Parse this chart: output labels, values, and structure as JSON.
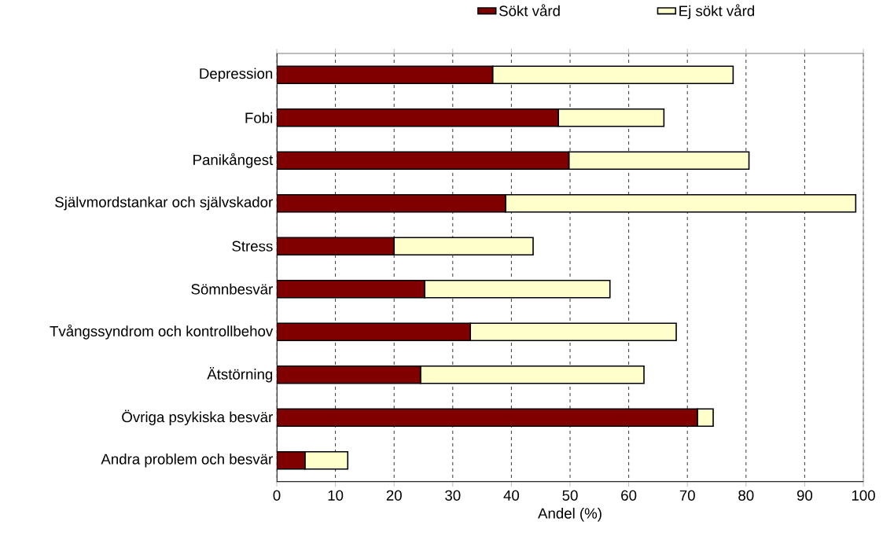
{
  "chart_data": {
    "type": "bar",
    "orientation": "horizontal",
    "stacked": true,
    "xlabel": "Andel (%)",
    "categories": [
      "Depression",
      "Fobi",
      "Panikångest",
      "Självmordstankar och självskador",
      "Stress",
      "Sömnbesvär",
      "Tvångssyndrom och kontrollbehov",
      "Ätstörning",
      "Övriga psykiska besvär",
      "Andra problem och besvär"
    ],
    "series": [
      {
        "name": "Sökt vård",
        "color": "#800000",
        "values": [
          36.8,
          48.0,
          49.8,
          39.0,
          20.0,
          25.2,
          33.0,
          24.5,
          71.7,
          4.8
        ]
      },
      {
        "name": "Ej sökt vård",
        "color": "#ffffcc",
        "values": [
          41.0,
          18.0,
          30.7,
          59.7,
          23.7,
          31.6,
          35.1,
          38.1,
          2.7,
          7.3
        ]
      }
    ],
    "xlim": [
      0,
      100
    ],
    "xticks": [
      0,
      10,
      20,
      30,
      40,
      50,
      60,
      70,
      80,
      90,
      100
    ],
    "grid": "x",
    "legend": "top"
  }
}
